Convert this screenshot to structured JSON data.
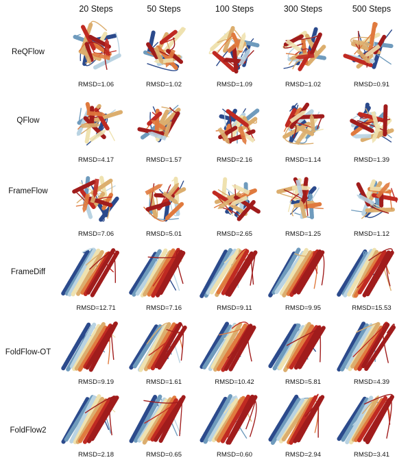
{
  "columns": [
    "20 Steps",
    "50 Steps",
    "100 Steps",
    "300 Steps",
    "500 Steps"
  ],
  "rows": [
    {
      "method": "ReQFlow",
      "rmsd": [
        "RMSD=1.06",
        "RMSD=1.02",
        "RMSD=1.09",
        "RMSD=1.02",
        "RMSD=0.91"
      ]
    },
    {
      "method": "QFlow",
      "rmsd": [
        "RMSD=4.17",
        "RMSD=1.57",
        "RMSD=2.16",
        "RMSD=1.14",
        "RMSD=1.39"
      ]
    },
    {
      "method": "FrameFlow",
      "rmsd": [
        "RMSD=7.06",
        "RMSD=5.01",
        "RMSD=2.65",
        "RMSD=1.25",
        "RMSD=1.12"
      ]
    },
    {
      "method": "FrameDiff",
      "rmsd": [
        "RMSD=12.71",
        "RMSD=7.16",
        "RMSD=9.11",
        "RMSD=9.95",
        "RMSD=15.53"
      ]
    },
    {
      "method": "FoldFlow-OT",
      "rmsd": [
        "RMSD=9.19",
        "RMSD=1.61",
        "RMSD=10.42",
        "RMSD=5.81",
        "RMSD=4.39"
      ]
    },
    {
      "method": "FoldFlow2",
      "rmsd": [
        "RMSD=2.18",
        "RMSD=0.65",
        "RMSD=0.60",
        "RMSD=2.94",
        "RMSD=3.41"
      ]
    }
  ],
  "colors": {
    "dark_blue": "#2b4a8c",
    "steel_blue": "#6f9bbd",
    "light_blue": "#b9d3e2",
    "cream": "#efe2b0",
    "gold": "#dcae6e",
    "orange": "#e07a3e",
    "red": "#c02a22",
    "crimson": "#a01c1c"
  }
}
